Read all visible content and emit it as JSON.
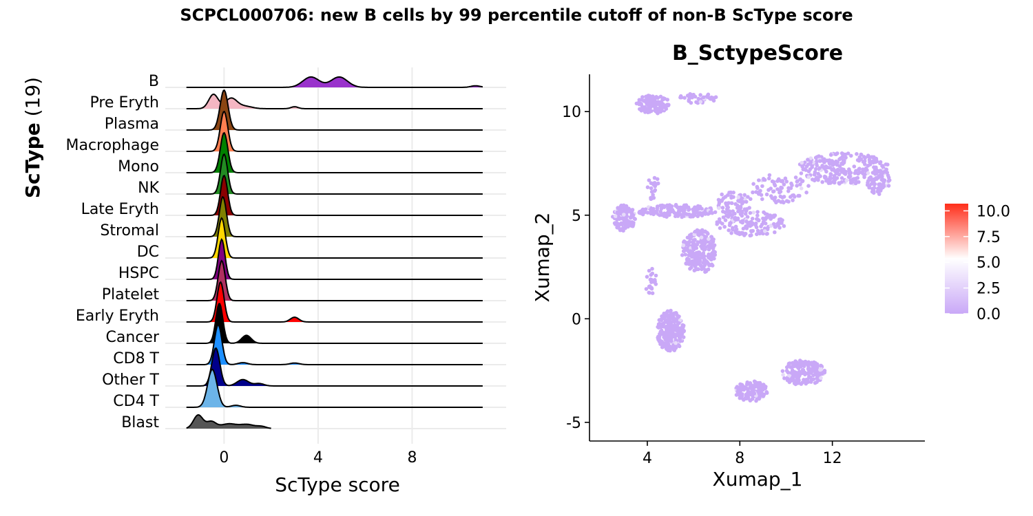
{
  "figure": {
    "title": "SCPCL000706: new B cells by 99 percentile cutoff of non-B ScType score"
  },
  "chart_data": [
    {
      "type": "ridgeline",
      "xlabel": "ScType score",
      "ylabel_bold": "ScType",
      "ylabel_count": "(19)",
      "x_ticks": [
        0,
        4,
        8
      ],
      "xlim": [
        -2.5,
        12
      ],
      "grid": true,
      "series": [
        {
          "name": "B",
          "color": "#9932CC",
          "x_range": [
            -1.6,
            11.0
          ],
          "peaks": [
            [
              3.7,
              0.26,
              0.35
            ],
            [
              4.9,
              0.26,
              0.35
            ],
            [
              10.7,
              0.04,
              0.2
            ]
          ]
        },
        {
          "name": "Pre Eryth",
          "color": "#F4B6C2",
          "x_range": [
            -1.6,
            11.0
          ],
          "peaks": [
            [
              -0.45,
              0.36,
              0.2
            ],
            [
              0.3,
              0.26,
              0.25
            ],
            [
              0.9,
              0.06,
              0.3
            ],
            [
              3.0,
              0.05,
              0.15
            ]
          ]
        },
        {
          "name": "Plasma",
          "color": "#8B4513",
          "x_range": [
            -1.6,
            11.0
          ],
          "peaks": [
            [
              0.0,
              1.0,
              0.17
            ]
          ]
        },
        {
          "name": "Macrophage",
          "color": "#FF7F50",
          "x_range": [
            -1.6,
            11.0
          ],
          "peaks": [
            [
              0.0,
              1.0,
              0.16
            ]
          ]
        },
        {
          "name": "Mono",
          "color": "#008000",
          "x_range": [
            -1.6,
            11.0
          ],
          "peaks": [
            [
              0.0,
              1.0,
              0.16
            ]
          ]
        },
        {
          "name": "NK",
          "color": "#228B22",
          "x_range": [
            -1.6,
            11.0
          ],
          "peaks": [
            [
              0.0,
              1.0,
              0.15
            ]
          ]
        },
        {
          "name": "Late Eryth",
          "color": "#8B0000",
          "x_range": [
            -1.6,
            11.0
          ],
          "peaks": [
            [
              0.0,
              1.0,
              0.15
            ]
          ]
        },
        {
          "name": "Stromal",
          "color": "#808000",
          "x_range": [
            -1.6,
            11.0
          ],
          "peaks": [
            [
              -0.05,
              1.0,
              0.15
            ]
          ]
        },
        {
          "name": "DC",
          "color": "#FFD700",
          "x_range": [
            -1.6,
            11.0
          ],
          "peaks": [
            [
              -0.1,
              1.0,
              0.15
            ]
          ]
        },
        {
          "name": "HSPC",
          "color": "#800080",
          "x_range": [
            -1.6,
            11.0
          ],
          "peaks": [
            [
              -0.1,
              1.0,
              0.14
            ]
          ]
        },
        {
          "name": "Platelet",
          "color": "#B03060",
          "x_range": [
            -1.6,
            11.0
          ],
          "peaks": [
            [
              -0.1,
              1.0,
              0.15
            ]
          ]
        },
        {
          "name": "Early Eryth",
          "color": "#FF0000",
          "x_range": [
            -1.6,
            11.0
          ],
          "peaks": [
            [
              -0.15,
              1.0,
              0.15
            ],
            [
              3.0,
              0.12,
              0.18
            ]
          ]
        },
        {
          "name": "Cancer",
          "color": "#000000",
          "x_range": [
            -1.6,
            11.0
          ],
          "peaks": [
            [
              -0.2,
              1.0,
              0.15
            ],
            [
              0.95,
              0.2,
              0.2
            ]
          ]
        },
        {
          "name": "CD8 T",
          "color": "#1E90FF",
          "x_range": [
            -1.6,
            11.0
          ],
          "peaks": [
            [
              -0.25,
              1.0,
              0.16
            ],
            [
              0.8,
              0.05,
              0.2
            ],
            [
              3.0,
              0.04,
              0.2
            ]
          ]
        },
        {
          "name": "Other T",
          "color": "#00008B",
          "x_range": [
            -1.6,
            11.0
          ],
          "peaks": [
            [
              -0.35,
              0.95,
              0.17
            ],
            [
              0.8,
              0.16,
              0.25
            ],
            [
              1.5,
              0.06,
              0.2
            ]
          ]
        },
        {
          "name": "CD4 T",
          "color": "#6CB4E8",
          "x_range": [
            -1.6,
            11.0
          ],
          "peaks": [
            [
              -0.5,
              0.95,
              0.2
            ],
            [
              0.5,
              0.05,
              0.2
            ]
          ]
        },
        {
          "name": "Blast",
          "color": "#555555",
          "x_range": [
            -1.6,
            2.0
          ],
          "peaks": [
            [
              -1.1,
              0.34,
              0.2
            ],
            [
              -0.55,
              0.17,
              0.2
            ],
            [
              0.2,
              0.12,
              0.35
            ],
            [
              1.0,
              0.1,
              0.3
            ],
            [
              1.6,
              0.05,
              0.2
            ]
          ]
        }
      ]
    },
    {
      "type": "scatter",
      "title": "B_SctypeScore",
      "xlabel": "Xumap_1",
      "ylabel": "Xumap_2",
      "x_ticks": [
        4,
        8,
        12
      ],
      "y_ticks": [
        -5,
        0,
        5,
        10
      ],
      "y_tick_labels": [
        "-5",
        "0",
        "5",
        "10"
      ],
      "xlim": [
        1.5,
        16
      ],
      "ylim": [
        -5.9,
        11.8
      ],
      "point_color": "#C9A8F7",
      "clusters": [
        {
          "x": [
            3.5,
            5.0
          ],
          "y": [
            9.9,
            10.8
          ],
          "n": 130
        },
        {
          "x": [
            5.3,
            7.0
          ],
          "y": [
            10.4,
            10.9
          ],
          "n": 40
        },
        {
          "x": [
            2.5,
            3.5
          ],
          "y": [
            4.2,
            5.5
          ],
          "n": 110
        },
        {
          "x": [
            3.5,
            7.0
          ],
          "y": [
            4.9,
            5.5
          ],
          "n": 160
        },
        {
          "x": [
            7.0,
            10.0
          ],
          "y": [
            4.0,
            5.2
          ],
          "n": 140
        },
        {
          "x": [
            7.0,
            8.5
          ],
          "y": [
            5.0,
            6.2
          ],
          "n": 70
        },
        {
          "x": [
            8.5,
            11.0
          ],
          "y": [
            5.6,
            7.0
          ],
          "n": 80
        },
        {
          "x": [
            10.5,
            14.5
          ],
          "y": [
            6.5,
            8.0
          ],
          "n": 260
        },
        {
          "x": [
            13.5,
            14.5
          ],
          "y": [
            6.0,
            7.2
          ],
          "n": 60
        },
        {
          "x": [
            5.5,
            7.0
          ],
          "y": [
            2.2,
            4.3
          ],
          "n": 220
        },
        {
          "x": [
            4.0,
            4.5
          ],
          "y": [
            5.6,
            7.0
          ],
          "n": 20
        },
        {
          "x": [
            3.9,
            4.4
          ],
          "y": [
            1.2,
            2.5
          ],
          "n": 25
        },
        {
          "x": [
            4.4,
            5.6
          ],
          "y": [
            -1.6,
            0.4
          ],
          "n": 240
        },
        {
          "x": [
            7.8,
            9.2
          ],
          "y": [
            -4.0,
            -3.0
          ],
          "n": 130
        },
        {
          "x": [
            9.8,
            11.7
          ],
          "y": [
            -3.2,
            -2.0
          ],
          "n": 190
        }
      ],
      "legend": {
        "placement": "right",
        "ticks": [
          0.0,
          2.5,
          5.0,
          7.5,
          10.0
        ],
        "tick_labels": [
          "0.0",
          "2.5",
          "5.0",
          "7.5",
          "10.0"
        ],
        "range": [
          0,
          10.7
        ],
        "gradient": [
          "#C9A8F7",
          "#FFFFFF",
          "#FF2E1A"
        ]
      }
    }
  ]
}
